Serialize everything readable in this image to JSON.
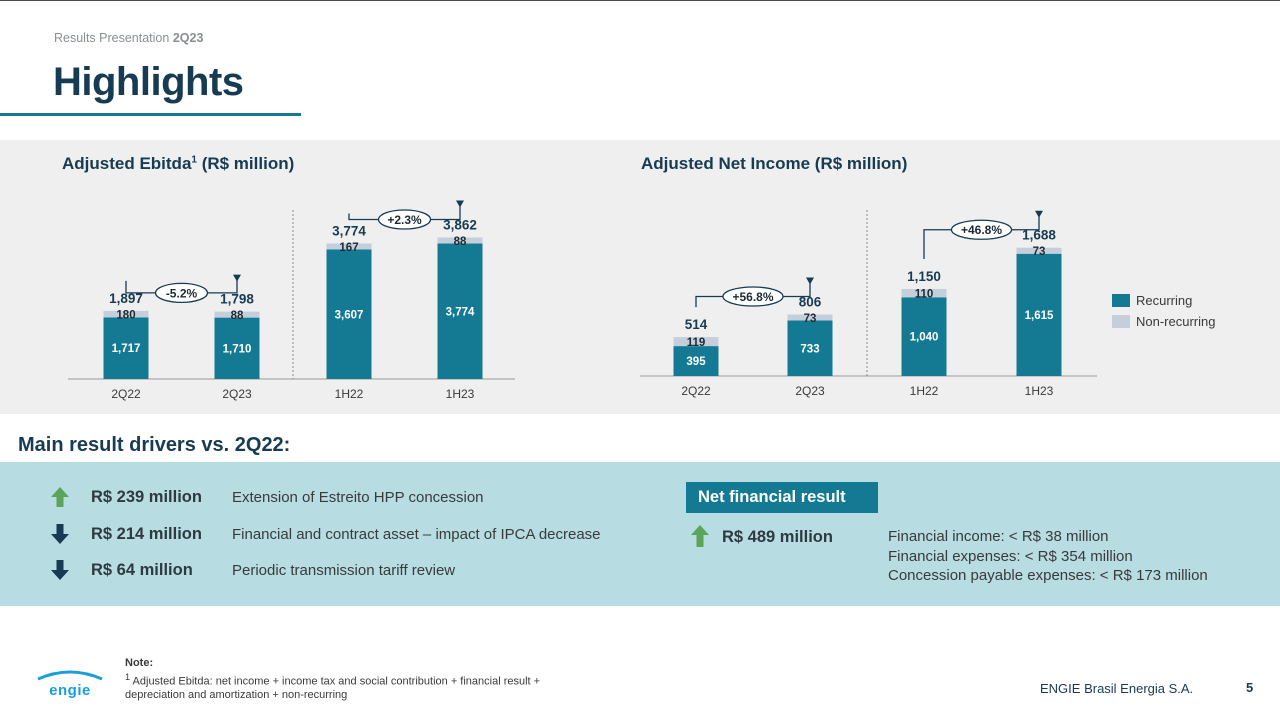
{
  "header": {
    "subtitle_prefix": "Results Presentation",
    "subtitle_period": "2Q23",
    "title": "Highlights"
  },
  "charts_text": {
    "left_title": "Adjusted Ebitda",
    "left_title_sup": "1",
    "left_title_suffix": " (R$ million)",
    "right_title": "Adjusted Net Income (R$ million)"
  },
  "chart_data": [
    {
      "type": "bar",
      "stacked": true,
      "title": "Adjusted Ebitda¹ (R$ million)",
      "categories": [
        "2Q22",
        "2Q23",
        "1H22",
        "1H23"
      ],
      "series": [
        {
          "name": "Recurring",
          "values": [
            1717,
            1710,
            3607,
            3774
          ],
          "labels": [
            "1,717",
            "1,710",
            "3,607",
            "3,774"
          ],
          "color": "#147a94"
        },
        {
          "name": "Non-recurring",
          "values": [
            180,
            88,
            167,
            88
          ],
          "labels": [
            "180",
            "88",
            "167",
            "88"
          ],
          "color": "#c5cfdc"
        }
      ],
      "totals": [
        "1,897",
        "1,798",
        "3,774",
        "3,862"
      ],
      "changes": [
        {
          "from": 0,
          "to": 1,
          "label": "-5.2%"
        },
        {
          "from": 2,
          "to": 3,
          "label": "+2.3%"
        }
      ],
      "divider_after": 1
    },
    {
      "type": "bar",
      "stacked": true,
      "title": "Adjusted Net Income (R$ million)",
      "categories": [
        "2Q22",
        "2Q23",
        "1H22",
        "1H23"
      ],
      "series": [
        {
          "name": "Recurring",
          "values": [
            395,
            733,
            1040,
            1615
          ],
          "labels": [
            "395",
            "733",
            "1,040",
            "1,615"
          ],
          "color": "#147a94"
        },
        {
          "name": "Non-recurring",
          "values": [
            119,
            73,
            110,
            73
          ],
          "labels": [
            "119",
            "73",
            "110",
            "73"
          ],
          "color": "#c5cfdc"
        }
      ],
      "totals": [
        "514",
        "806",
        "1,150",
        "1,688"
      ],
      "changes": [
        {
          "from": 0,
          "to": 1,
          "label": "+56.8%"
        },
        {
          "from": 2,
          "to": 3,
          "label": "+46.8%"
        }
      ],
      "divider_after": 1,
      "legend": [
        "Recurring",
        "Non-recurring"
      ],
      "legend_position": "right"
    }
  ],
  "drivers": {
    "title": "Main result drivers vs. 2Q22:",
    "items": [
      {
        "direction": "up",
        "amount": "R$ 239 million",
        "description": "Extension of Estreito HPP concession"
      },
      {
        "direction": "down",
        "amount": "R$ 214 million",
        "description": "Financial and contract asset – impact of IPCA decrease"
      },
      {
        "direction": "down",
        "amount": "R$ 64 million",
        "description": "Periodic transmission tariff review"
      }
    ]
  },
  "net_financial": {
    "header": "Net financial result",
    "direction": "up",
    "amount": "R$ 489 million",
    "lines": [
      "Financial income: < R$ 38 million",
      "Financial expenses: < R$ 354 million",
      "Concession payable expenses: < R$ 173 million"
    ]
  },
  "footer": {
    "logo_text": "ENGIE",
    "note_title": "Note:",
    "note_sup": "1",
    "note_text": " Adjusted Ebitda: net income + income tax and social contribution + financial result + depreciation and amortization + non-recurring",
    "company": "ENGIE Brasil Energia S.A.",
    "page": "5"
  },
  "colors": {
    "primary": "#147a94",
    "dark": "#163b52",
    "non_recurring": "#c5cfdc",
    "up_arrow": "#5aa55a",
    "down_arrow": "#163b52",
    "panel_gray": "#efefef",
    "panel_blue": "#b7dce2"
  }
}
